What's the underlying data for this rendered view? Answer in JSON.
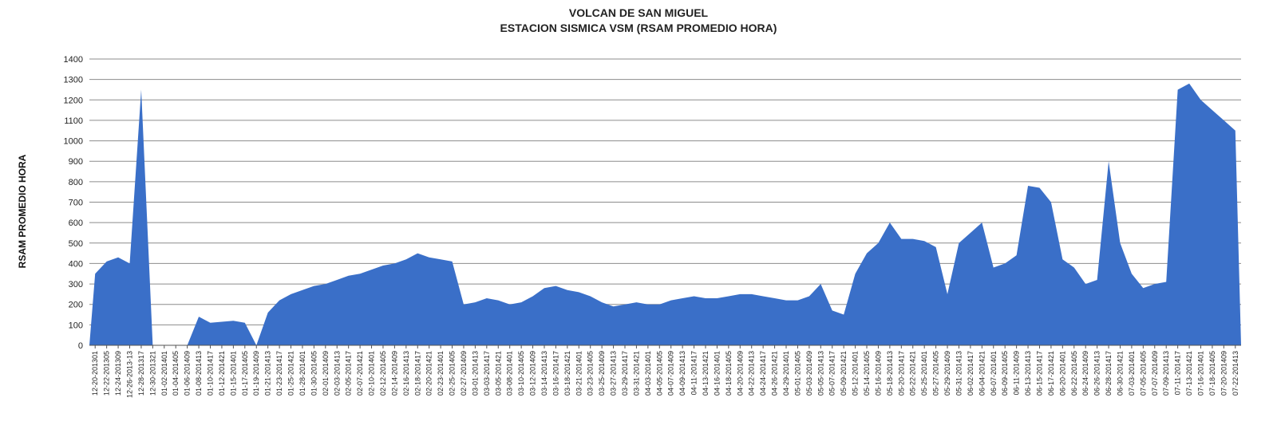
{
  "chart_data": {
    "type": "area",
    "title": "VOLCAN DE SAN MIGUEL",
    "subtitle": "ESTACION SISMICA  VSM (RSAM PROMEDIO HORA)",
    "xlabel": "",
    "ylabel": "RSAM PROMEDIO HORA",
    "ylim": [
      0,
      1400
    ],
    "yticks": [
      0,
      100,
      200,
      300,
      400,
      500,
      600,
      700,
      800,
      900,
      1000,
      1100,
      1200,
      1300,
      1400
    ],
    "grid": true,
    "legend": "none",
    "series_color": "#3A6FC8",
    "categories": [
      "12-20-201301",
      "12-22-201305",
      "12-24-201309",
      "12-26-2013-13",
      "12-28-201317",
      "12-30-201321",
      "01-02-201401",
      "01-04-201405",
      "01-06-201409",
      "01-08-201413",
      "01-10-201417",
      "01-12-201421",
      "01-15-201401",
      "01-17-201405",
      "01-19-201409",
      "01-21-201413",
      "01-23-201417",
      "01-25-201421",
      "01-28-201401",
      "01-30-201405",
      "02-01-201409",
      "02-03-201413",
      "02-05-201417",
      "02-07-201421",
      "02-10-201401",
      "02-12-201405",
      "02-14-201409",
      "02-16-201413",
      "02-18-201417",
      "02-20-201421",
      "02-23-201401",
      "02-25-201405",
      "02-27-201409",
      "03-01-201413",
      "03-03-201417",
      "03-05-201421",
      "03-08-201401",
      "03-10-201405",
      "03-12-201409",
      "03-14-201413",
      "03-16-201417",
      "03-18-201421",
      "03-21-201401",
      "03-23-201405",
      "03-25-201409",
      "03-27-201413",
      "03-29-201417",
      "03-31-201421",
      "04-03-201401",
      "04-05-201405",
      "04-07-201409",
      "04-09-201413",
      "04-11-201417",
      "04-13-201421",
      "04-16-201401",
      "04-18-201405",
      "04-20-201409",
      "04-22-201413",
      "04-24-201417",
      "04-26-201421",
      "04-29-201401",
      "05-01-201405",
      "05-03-201409",
      "05-05-201413",
      "05-07-201417",
      "05-09-201421",
      "05-12-201401",
      "05-14-201405",
      "05-16-201409",
      "05-18-201413",
      "05-20-201417",
      "05-22-201421",
      "05-25-201401",
      "05-27-201405",
      "05-29-201409",
      "05-31-201413",
      "06-02-201417",
      "06-04-201421",
      "06-07-201401",
      "06-09-201405",
      "06-11-201409",
      "06-13-201413",
      "06-15-201417",
      "06-17-201421",
      "06-20-201401",
      "06-22-201405",
      "06-24-201409",
      "06-26-201413",
      "06-28-201417",
      "06-30-201421",
      "07-03-201401",
      "07-05-201405",
      "07-07-201409",
      "07-09-201413",
      "07-11-201417",
      "07-13-201421",
      "07-16-201401",
      "07-18-201405",
      "07-20-201409",
      "07-22-201413"
    ],
    "values": [
      350,
      410,
      430,
      400,
      1250,
      0,
      0,
      0,
      0,
      140,
      110,
      115,
      120,
      110,
      0,
      160,
      220,
      250,
      270,
      290,
      300,
      320,
      340,
      350,
      370,
      390,
      400,
      420,
      450,
      430,
      420,
      410,
      200,
      210,
      230,
      220,
      200,
      210,
      240,
      280,
      290,
      270,
      260,
      240,
      210,
      190,
      200,
      210,
      200,
      200,
      220,
      230,
      240,
      230,
      230,
      240,
      250,
      250,
      240,
      230,
      220,
      220,
      240,
      300,
      170,
      150,
      350,
      450,
      500,
      600,
      520,
      520,
      510,
      480,
      250,
      500,
      550,
      600,
      380,
      400,
      440,
      780,
      770,
      700,
      420,
      380,
      300,
      320,
      900,
      500,
      350,
      280,
      300,
      310,
      1250,
      1280,
      1200,
      1150,
      1100,
      1050
    ]
  }
}
